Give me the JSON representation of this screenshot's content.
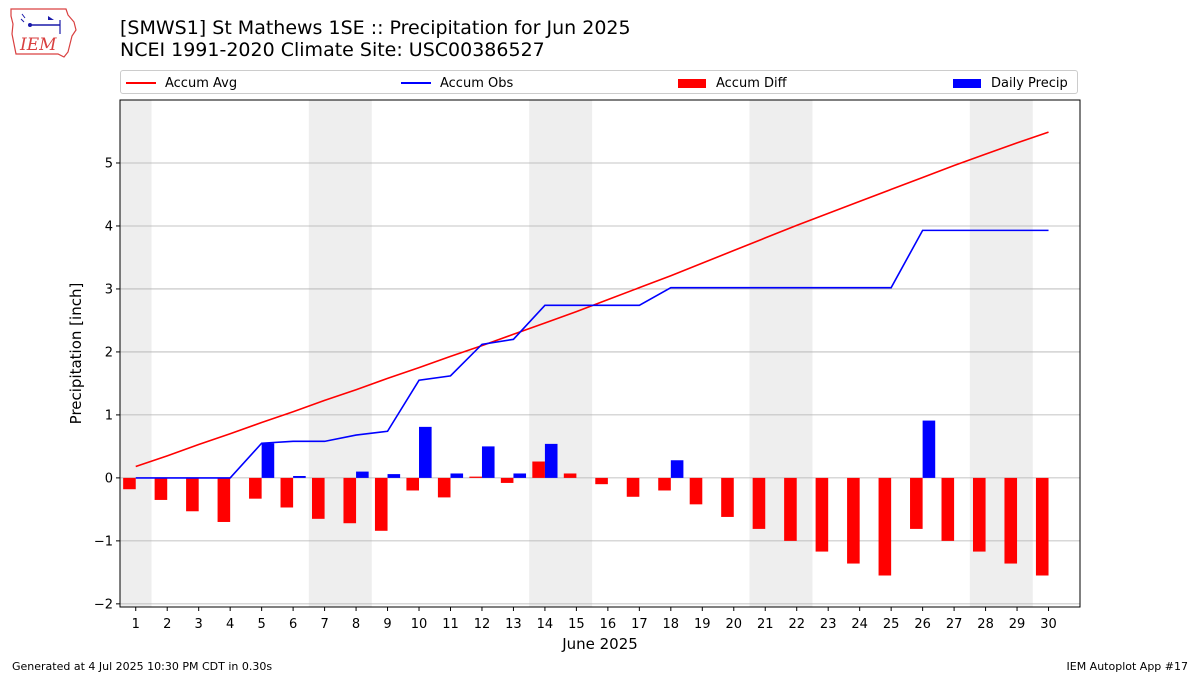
{
  "header": {
    "title_line1": "[SMWS1] St Mathews 1SE :: Precipitation for Jun 2025",
    "title_line2": "NCEI 1991-2020 Climate Site: USC00386527"
  },
  "logo": {
    "text": "IEM",
    "icon": "iem-iowa-logo-icon"
  },
  "legend": [
    {
      "label": "Accum Avg",
      "color": "#ff0000",
      "kind": "line"
    },
    {
      "label": "Accum Obs",
      "color": "#0000ff",
      "kind": "line"
    },
    {
      "label": "Accum Diff",
      "color": "#ff0000",
      "kind": "bar"
    },
    {
      "label": "Daily Precip",
      "color": "#0000ff",
      "kind": "bar"
    }
  ],
  "footer": {
    "left": "Generated at 4 Jul 2025 10:30 PM CDT in 0.30s",
    "right": "IEM Autoplot App #17"
  },
  "chart_data": {
    "type": "bar",
    "title": "[SMWS1] St Mathews 1SE :: Precipitation for Jun 2025",
    "subtitle": "NCEI 1991-2020 Climate Site: USC00386527",
    "xlabel": "June 2025",
    "ylabel": "Precipitation [inch]",
    "xlim": [
      0.5,
      31
    ],
    "ylim": [
      -2.05,
      6.0
    ],
    "yticks": [
      -2,
      -1,
      0,
      1,
      2,
      3,
      4,
      5
    ],
    "ytick_labels": [
      "−2",
      "−1",
      "0",
      "1",
      "2",
      "3",
      "4",
      "5"
    ],
    "categories": [
      1,
      2,
      3,
      4,
      5,
      6,
      7,
      8,
      9,
      10,
      11,
      12,
      13,
      14,
      15,
      16,
      17,
      18,
      19,
      20,
      21,
      22,
      23,
      24,
      25,
      26,
      27,
      28,
      29,
      30
    ],
    "weekend_shading": [
      [
        0.5,
        1.5
      ],
      [
        6.5,
        8.5
      ],
      [
        13.5,
        15.5
      ],
      [
        20.5,
        22.5
      ],
      [
        27.5,
        29.5
      ]
    ],
    "grid": "y",
    "legend_position": "top",
    "series": [
      {
        "name": "Accum Avg",
        "type": "line",
        "color": "#ff0000",
        "values": [
          0.18,
          0.35,
          0.53,
          0.7,
          0.88,
          1.05,
          1.23,
          1.4,
          1.58,
          1.75,
          1.93,
          2.1,
          2.28,
          2.46,
          2.64,
          2.83,
          3.02,
          3.21,
          3.41,
          3.61,
          3.81,
          4.01,
          4.2,
          4.39,
          4.58,
          4.77,
          4.96,
          5.14,
          5.32,
          5.49
        ]
      },
      {
        "name": "Accum Obs",
        "type": "line",
        "color": "#0000ff",
        "values": [
          0.0,
          0.0,
          0.0,
          0.0,
          0.55,
          0.58,
          0.58,
          0.68,
          0.74,
          1.55,
          1.62,
          2.12,
          2.2,
          2.74,
          2.74,
          2.74,
          2.74,
          3.02,
          3.02,
          3.02,
          3.02,
          3.02,
          3.02,
          3.02,
          3.02,
          3.93,
          3.93,
          3.93,
          3.93,
          3.93
        ]
      },
      {
        "name": "Accum Diff",
        "type": "bar",
        "color": "#ff0000",
        "values": [
          -0.18,
          -0.35,
          -0.53,
          -0.7,
          -0.33,
          -0.47,
          -0.65,
          -0.72,
          -0.84,
          -0.2,
          -0.31,
          0.02,
          -0.08,
          0.26,
          0.07,
          -0.1,
          -0.3,
          -0.2,
          -0.42,
          -0.62,
          -0.81,
          -1.0,
          -1.17,
          -1.36,
          -1.55,
          -0.81,
          -1.0,
          -1.17,
          -1.36,
          -1.55
        ]
      },
      {
        "name": "Daily Precip",
        "type": "bar",
        "color": "#0000ff",
        "values": [
          0,
          0,
          0,
          0,
          0.55,
          0.03,
          0,
          0.1,
          0.06,
          0.81,
          0.07,
          0.5,
          0.07,
          0.54,
          0,
          0,
          0,
          0.28,
          0,
          0,
          0,
          0,
          0,
          0,
          0,
          0.91,
          0,
          0,
          0,
          0
        ]
      }
    ]
  }
}
